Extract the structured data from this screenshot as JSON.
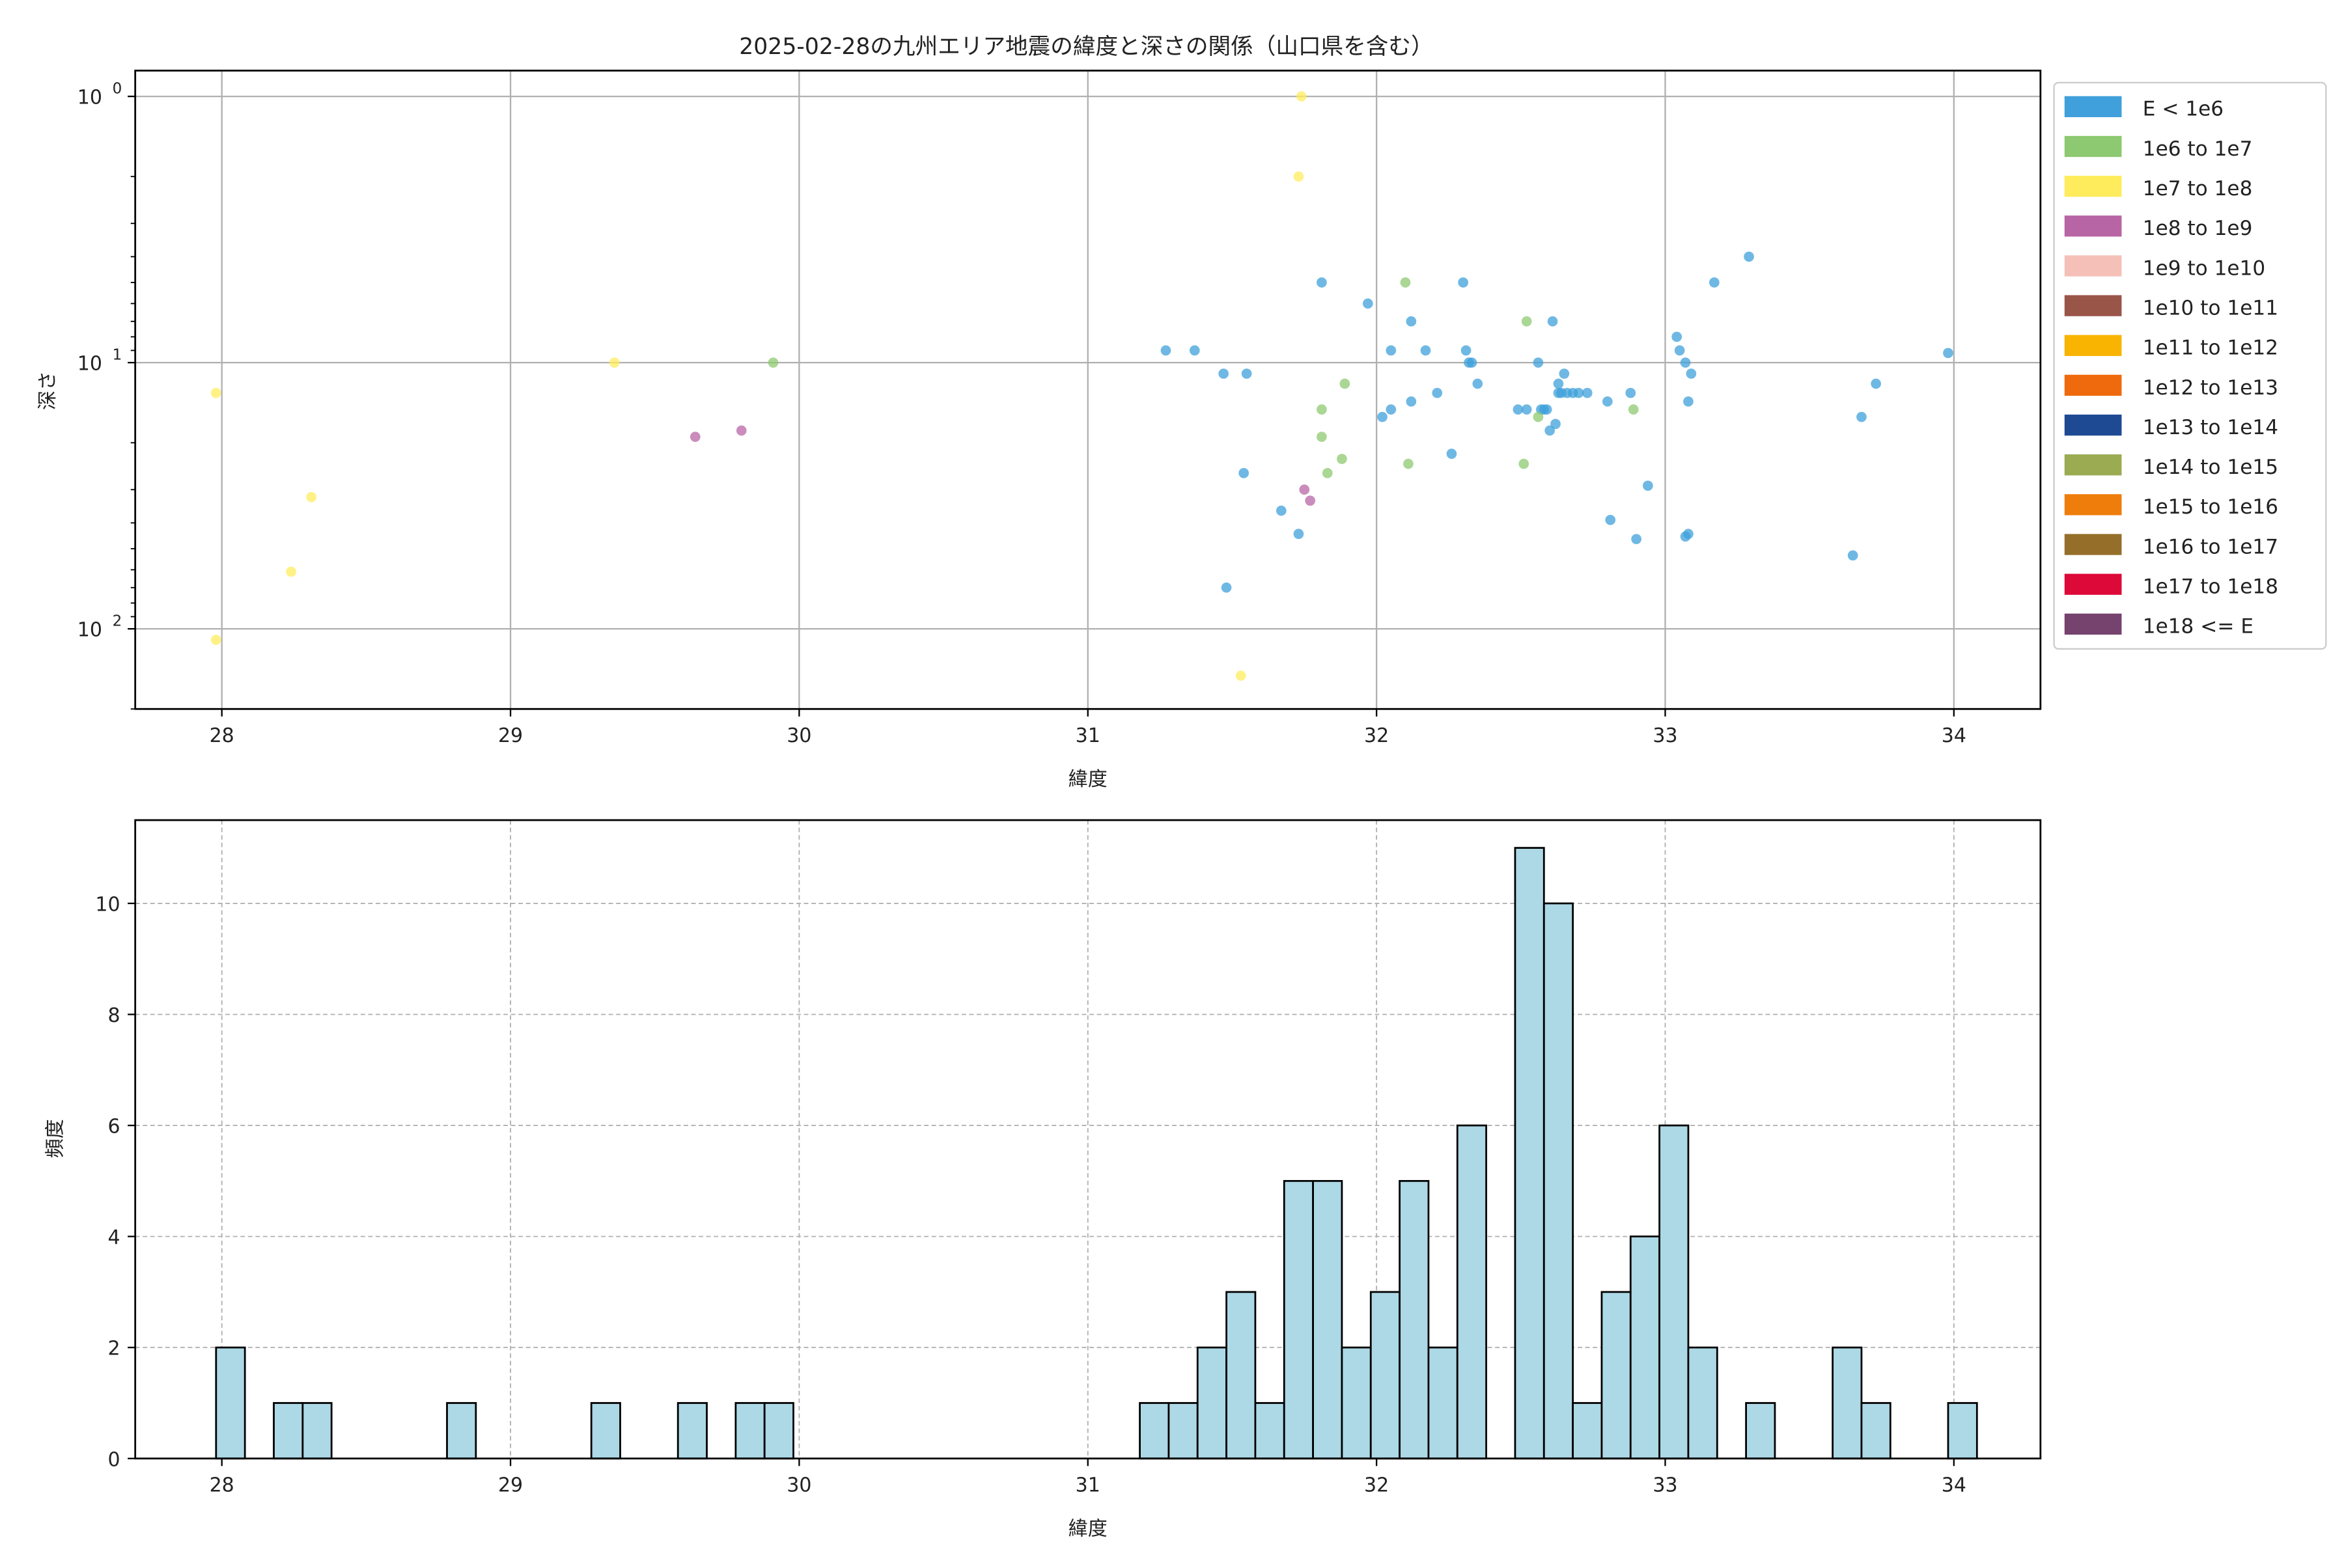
{
  "chart_data": [
    {
      "type": "scatter",
      "title": "2025-02-28の九州エリア地震の緯度と深さの関係（山口県を含む）",
      "xlabel": "緯度",
      "ylabel": "深さ",
      "xlim": [
        27.7,
        34.3
      ],
      "ylim": [
        200,
        0.8
      ],
      "y_scale": "log",
      "y_inverted": true,
      "grid": true,
      "x_ticks": [
        28,
        29,
        30,
        31,
        32,
        33,
        34
      ],
      "y_ticks": [
        {
          "value": 1,
          "label": "10^0"
        },
        {
          "value": 10,
          "label": "10^1"
        },
        {
          "value": 100,
          "label": "10^2"
        }
      ],
      "legend_position": "outside-right",
      "legend": [
        {
          "label": "E < 1e6",
          "color": "#3fa0db"
        },
        {
          "label": "1e6 to 1e7",
          "color": "#8dc970"
        },
        {
          "label": "1e7 to 1e8",
          "color": "#ffec5c"
        },
        {
          "label": "1e8 to 1e9",
          "color": "#b865a5"
        },
        {
          "label": "1e9 to 1e10",
          "color": "#f5c0b8"
        },
        {
          "label": "1e10 to 1e11",
          "color": "#9a5549"
        },
        {
          "label": "1e11 to 1e12",
          "color": "#f8b400"
        },
        {
          "label": "1e12 to 1e13",
          "color": "#ef6a0c"
        },
        {
          "label": "1e13 to 1e14",
          "color": "#1e4a94"
        },
        {
          "label": "1e14 to 1e15",
          "color": "#9aab52"
        },
        {
          "label": "1e15 to 1e16",
          "color": "#ee7d0c"
        },
        {
          "label": "1e16 to 1e17",
          "color": "#956e2a"
        },
        {
          "label": "1e17 to 1e18",
          "color": "#dd0939"
        },
        {
          "label": "1e18 <= E",
          "color": "#76426e"
        }
      ],
      "series": [
        {
          "name": "E < 1e6",
          "color": "#3fa0db",
          "points": [
            [
              31.27,
              9
            ],
            [
              31.37,
              9
            ],
            [
              31.47,
              11
            ],
            [
              31.55,
              11
            ],
            [
              31.54,
              26
            ],
            [
              31.48,
              70
            ],
            [
              31.67,
              36
            ],
            [
              31.73,
              44
            ],
            [
              31.81,
              5
            ],
            [
              31.97,
              6
            ],
            [
              32.05,
              9
            ],
            [
              32.12,
              7
            ],
            [
              32.17,
              9
            ],
            [
              32.21,
              13
            ],
            [
              32.12,
              14
            ],
            [
              32.02,
              16
            ],
            [
              32.05,
              15
            ],
            [
              32.26,
              22
            ],
            [
              32.3,
              5
            ],
            [
              32.31,
              9
            ],
            [
              32.33,
              10
            ],
            [
              32.35,
              12
            ],
            [
              32.32,
              10
            ],
            [
              32.49,
              15
            ],
            [
              32.52,
              15
            ],
            [
              32.56,
              10
            ],
            [
              32.57,
              15
            ],
            [
              32.58,
              15
            ],
            [
              32.59,
              15
            ],
            [
              32.6,
              18
            ],
            [
              32.61,
              7
            ],
            [
              32.63,
              12
            ],
            [
              32.62,
              17
            ],
            [
              32.64,
              13
            ],
            [
              32.65,
              11
            ],
            [
              32.63,
              13
            ],
            [
              32.66,
              13
            ],
            [
              32.68,
              13
            ],
            [
              32.7,
              13
            ],
            [
              32.73,
              13
            ],
            [
              32.8,
              14
            ],
            [
              32.81,
              39
            ],
            [
              32.88,
              13
            ],
            [
              32.9,
              46
            ],
            [
              32.94,
              29
            ],
            [
              33.04,
              8
            ],
            [
              33.05,
              9
            ],
            [
              33.07,
              10
            ],
            [
              33.09,
              11
            ],
            [
              33.08,
              14
            ],
            [
              33.08,
              44
            ],
            [
              33.07,
              45
            ],
            [
              33.17,
              5
            ],
            [
              33.29,
              4
            ],
            [
              33.68,
              16
            ],
            [
              33.73,
              12
            ],
            [
              33.65,
              53
            ],
            [
              33.98,
              9.2
            ]
          ]
        },
        {
          "name": "1e6 to 1e7",
          "color": "#8dc970",
          "points": [
            [
              29.91,
              10
            ],
            [
              31.81,
              15
            ],
            [
              31.81,
              19
            ],
            [
              31.89,
              12
            ],
            [
              31.88,
              23
            ],
            [
              31.83,
              26
            ],
            [
              32.1,
              5
            ],
            [
              32.11,
              24
            ],
            [
              32.52,
              7
            ],
            [
              32.51,
              24
            ],
            [
              32.56,
              16
            ],
            [
              32.89,
              15
            ]
          ]
        },
        {
          "name": "1e7 to 1e8",
          "color": "#ffec5c",
          "points": [
            [
              27.98,
              13
            ],
            [
              27.98,
              110
            ],
            [
              28.24,
              61
            ],
            [
              28.31,
              32
            ],
            [
              29.36,
              10
            ],
            [
              31.53,
              150
            ],
            [
              31.73,
              2
            ],
            [
              31.74,
              1
            ]
          ]
        },
        {
          "name": "1e8 to 1e9",
          "color": "#b865a5",
          "points": [
            [
              29.64,
              19
            ],
            [
              29.8,
              18
            ],
            [
              31.75,
              30
            ],
            [
              31.77,
              33
            ]
          ]
        }
      ]
    },
    {
      "type": "bar",
      "xlabel": "緯度",
      "ylabel": "頻度",
      "xlim": [
        27.7,
        34.3
      ],
      "ylim": [
        0,
        11.5
      ],
      "grid": true,
      "x_ticks": [
        28,
        29,
        30,
        31,
        32,
        33,
        34
      ],
      "y_ticks": [
        0,
        2,
        4,
        6,
        8,
        10
      ],
      "bin_width": 0.1,
      "color": "#add8e6",
      "edge_color": "#000000",
      "bins": [
        {
          "start": 27.98,
          "count": 2
        },
        {
          "start": 28.18,
          "count": 1
        },
        {
          "start": 28.28,
          "count": 1
        },
        {
          "start": 28.78,
          "count": 1
        },
        {
          "start": 29.28,
          "count": 1
        },
        {
          "start": 29.58,
          "count": 1
        },
        {
          "start": 29.78,
          "count": 1
        },
        {
          "start": 29.88,
          "count": 1
        },
        {
          "start": 31.18,
          "count": 1
        },
        {
          "start": 31.28,
          "count": 1
        },
        {
          "start": 31.38,
          "count": 2
        },
        {
          "start": 31.48,
          "count": 3
        },
        {
          "start": 31.58,
          "count": 1
        },
        {
          "start": 31.68,
          "count": 5
        },
        {
          "start": 31.78,
          "count": 5
        },
        {
          "start": 31.88,
          "count": 2
        },
        {
          "start": 31.98,
          "count": 3
        },
        {
          "start": 32.08,
          "count": 5
        },
        {
          "start": 32.18,
          "count": 2
        },
        {
          "start": 32.28,
          "count": 6
        },
        {
          "start": 32.48,
          "count": 11
        },
        {
          "start": 32.58,
          "count": 10
        },
        {
          "start": 32.68,
          "count": 1
        },
        {
          "start": 32.78,
          "count": 3
        },
        {
          "start": 32.88,
          "count": 4
        },
        {
          "start": 32.98,
          "count": 6
        },
        {
          "start": 33.08,
          "count": 2
        },
        {
          "start": 33.28,
          "count": 1
        },
        {
          "start": 33.58,
          "count": 2
        },
        {
          "start": 33.68,
          "count": 1
        },
        {
          "start": 33.98,
          "count": 1
        }
      ]
    }
  ]
}
